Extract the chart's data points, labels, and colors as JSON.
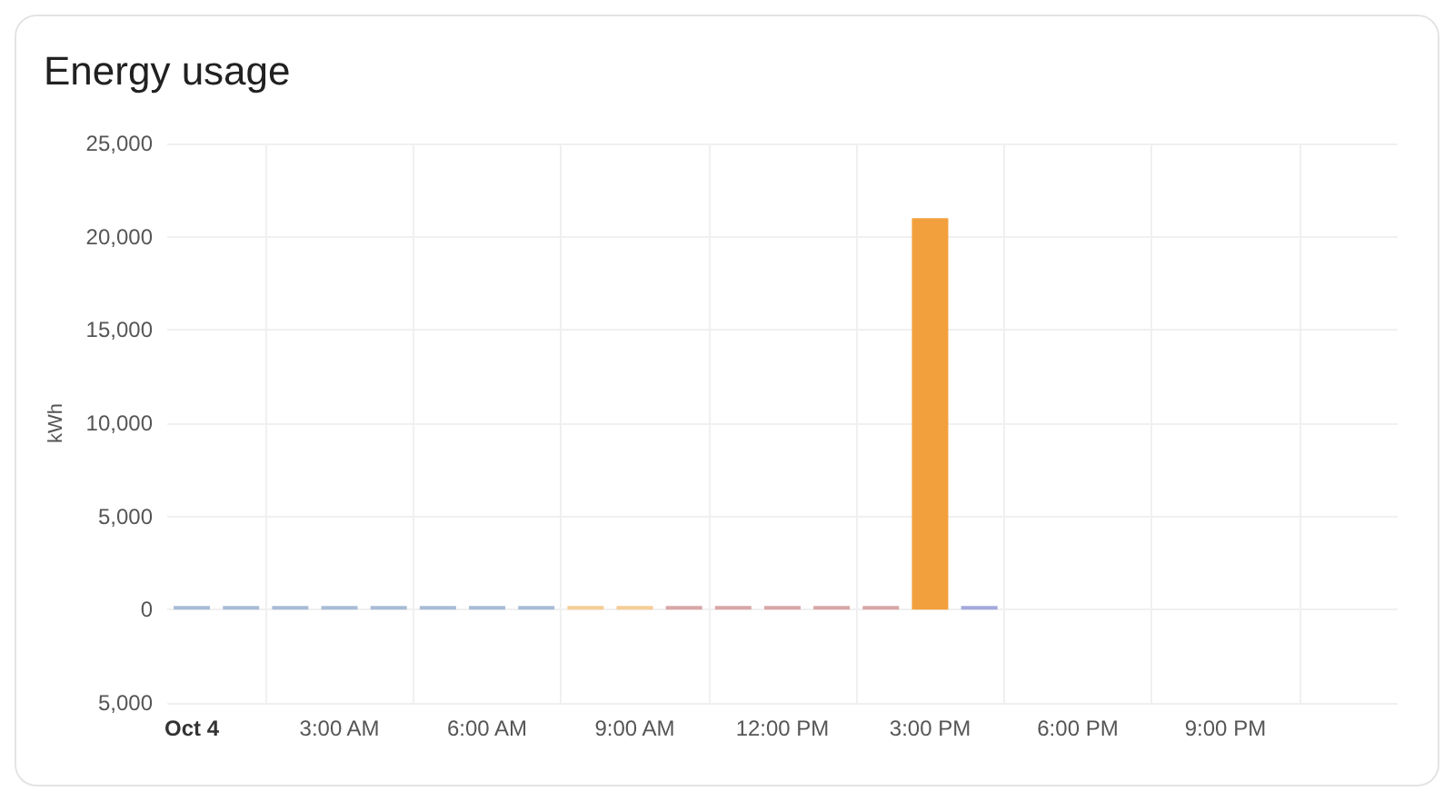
{
  "chart_data": {
    "type": "bar",
    "title": "Energy usage",
    "ylabel": "kWh",
    "x": [
      0,
      1,
      2,
      3,
      4,
      5,
      6,
      7,
      8,
      9,
      10,
      11,
      12,
      13,
      14,
      15,
      16
    ],
    "values": [
      0,
      0,
      0,
      0,
      0,
      0,
      0,
      0,
      0,
      0,
      0,
      0,
      0,
      0,
      0,
      21000,
      0
    ],
    "colors": [
      "#a9bcd6",
      "#a9bcd6",
      "#a9bcd6",
      "#a9bcd6",
      "#a9bcd6",
      "#a9bcd6",
      "#a9bcd6",
      "#a9bcd6",
      "#f6cd96",
      "#f6cd96",
      "#d9a6a6",
      "#d9a6a6",
      "#d9a6a6",
      "#d9a6a6",
      "#d9a6a6",
      "#f2a03d",
      "#a3a9dc"
    ],
    "xlim": [
      -0.5,
      24.5
    ],
    "xticks": [
      {
        "value": 0,
        "label": "Oct 4"
      },
      {
        "value": 1.5,
        "label": null
      },
      {
        "value": 3,
        "label": "3:00 AM"
      },
      {
        "value": 4.5,
        "label": null
      },
      {
        "value": 6,
        "label": "6:00 AM"
      },
      {
        "value": 7.5,
        "label": null
      },
      {
        "value": 9,
        "label": "9:00 AM"
      },
      {
        "value": 10.5,
        "label": null
      },
      {
        "value": 12,
        "label": "12:00 PM"
      },
      {
        "value": 13.5,
        "label": null
      },
      {
        "value": 15,
        "label": "3:00 PM"
      },
      {
        "value": 16.5,
        "label": null
      },
      {
        "value": 18,
        "label": "6:00 PM"
      },
      {
        "value": 19.5,
        "label": null
      },
      {
        "value": 21,
        "label": "9:00 PM"
      },
      {
        "value": 22.5,
        "label": null
      }
    ],
    "ylim": [
      -5000,
      25000
    ],
    "yticks": [
      {
        "value": -5000,
        "label": "5,000"
      },
      0,
      {
        "value": 5000,
        "label": "5,000"
      },
      {
        "value": 10000,
        "label": "10,000"
      },
      {
        "value": 15000,
        "label": "15,000"
      },
      {
        "value": 20000,
        "label": "20,000"
      },
      {
        "value": 25000,
        "label": "25,000"
      }
    ],
    "grid": true
  }
}
